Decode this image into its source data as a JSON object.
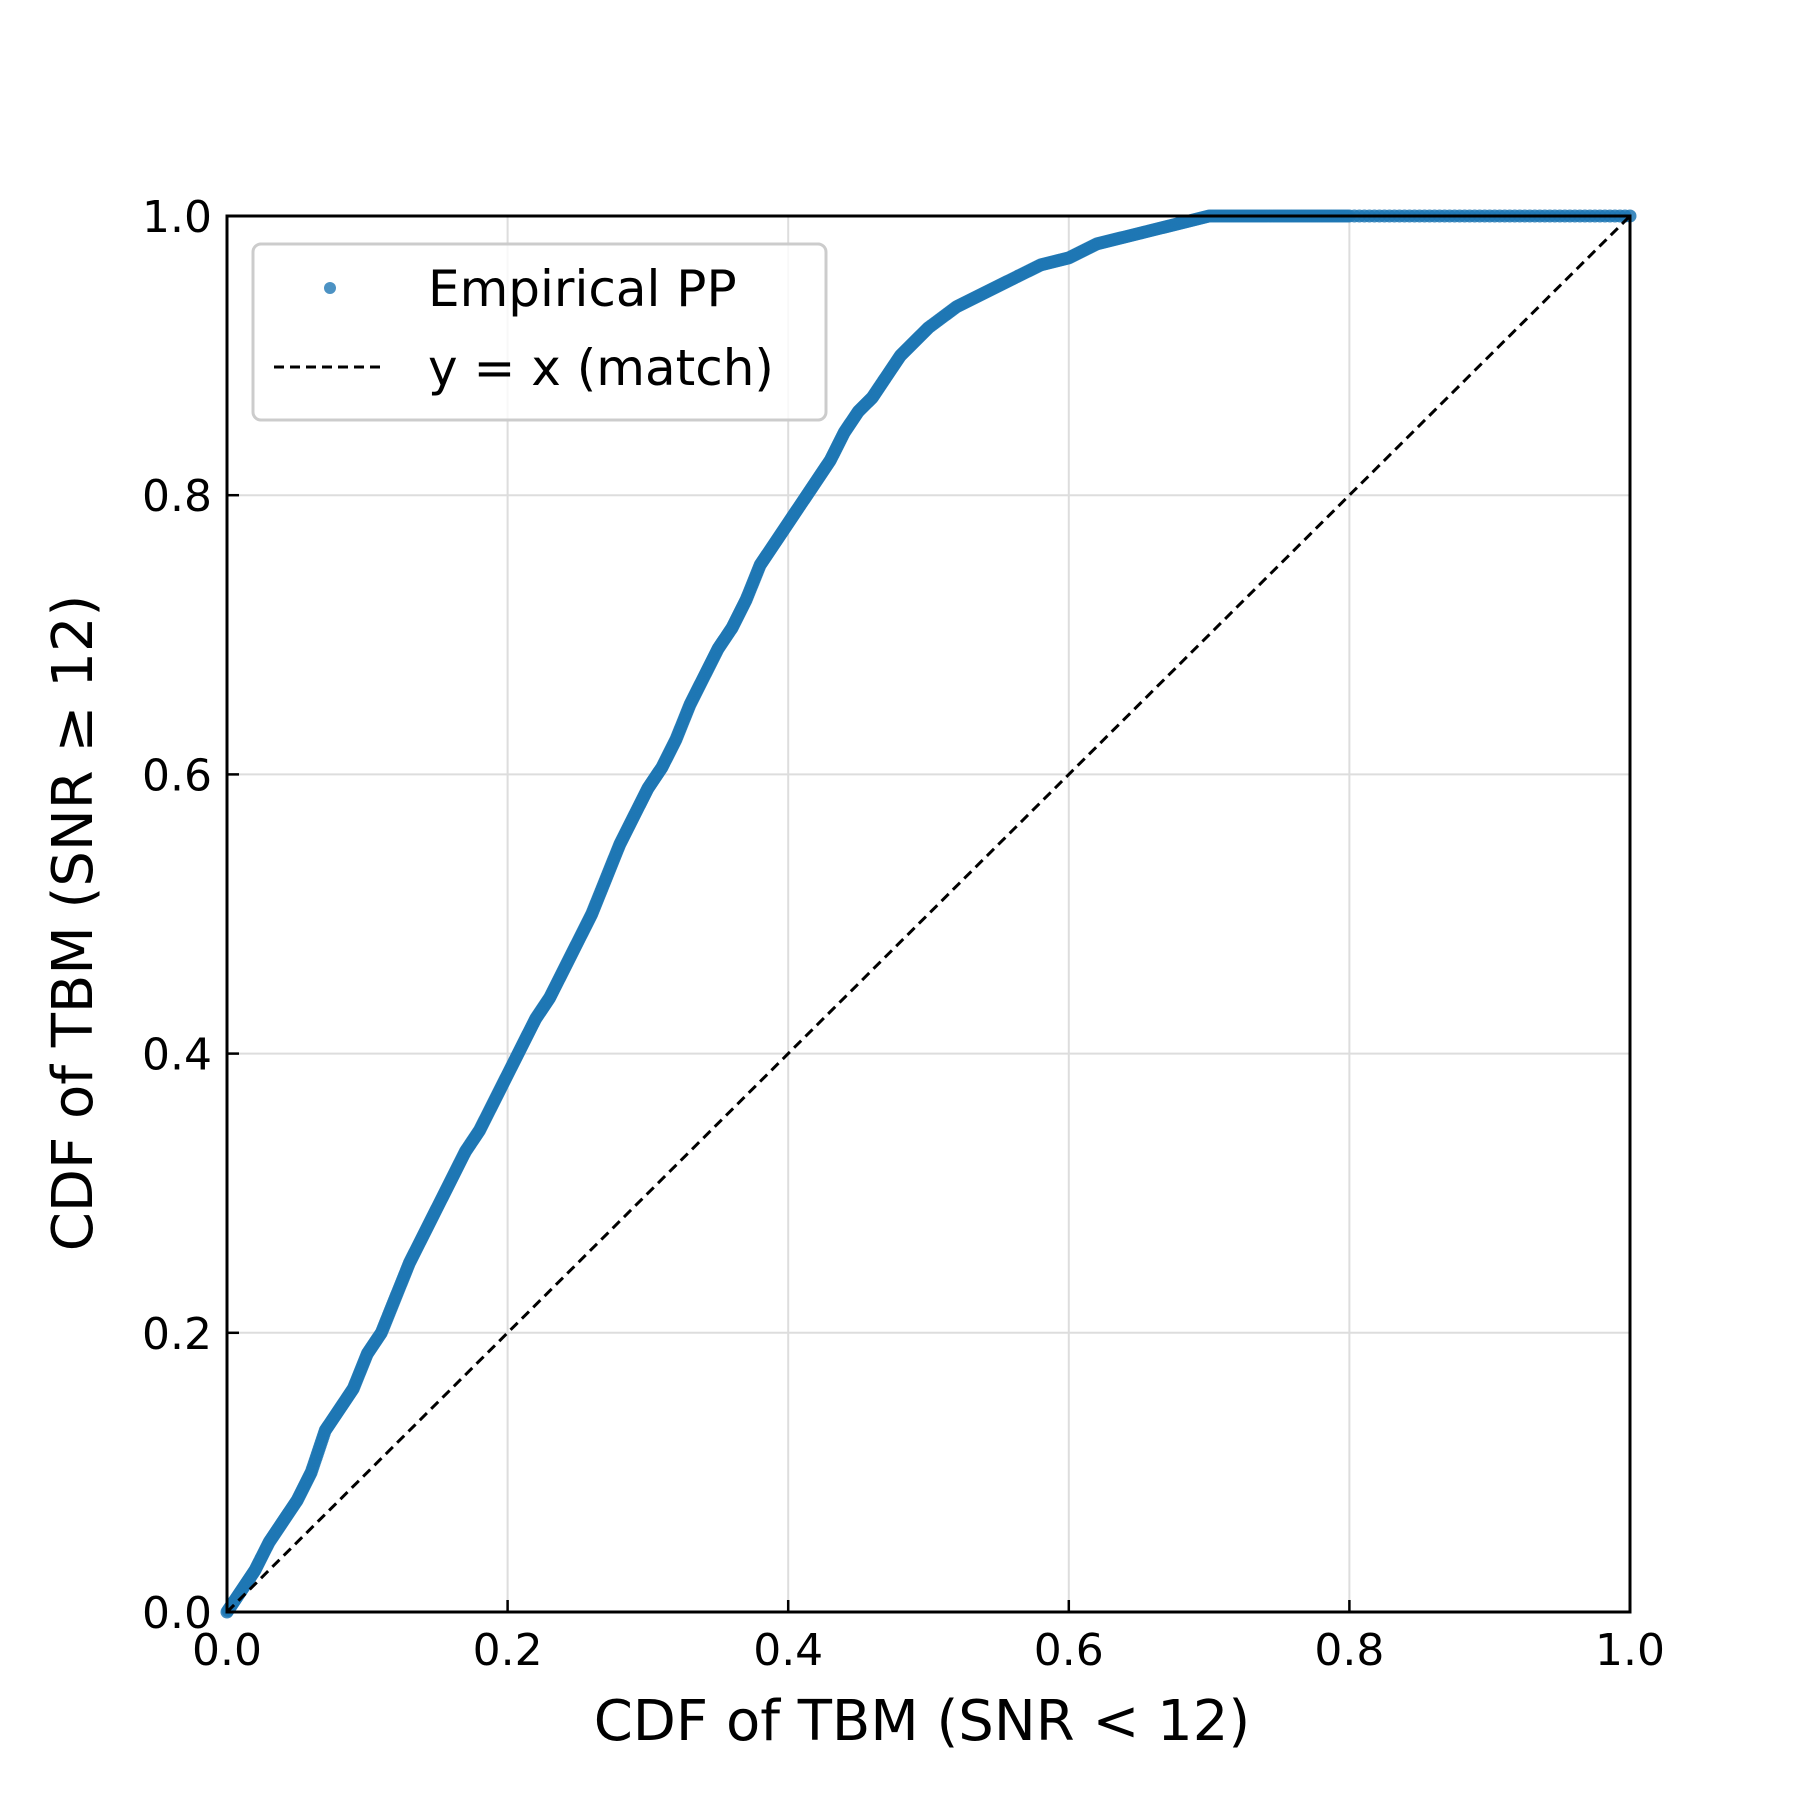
{
  "chart_data": {
    "type": "scatter",
    "xlabel": "CDF of TBM (SNR < 12)",
    "ylabel": "CDF of TBM (SNR ≥ 12)",
    "xlim": [
      0.0,
      1.0
    ],
    "ylim": [
      0.0,
      1.0
    ],
    "x_ticks": [
      "0.0",
      "0.2",
      "0.4",
      "0.6",
      "0.8",
      "1.0"
    ],
    "y_ticks": [
      "0.0",
      "0.2",
      "0.4",
      "0.6",
      "0.8",
      "1.0"
    ],
    "grid": true,
    "legend_position": "upper-left",
    "series": [
      {
        "name": "Empirical PP",
        "kind": "points",
        "color": "#1f77b4",
        "x": [
          0.0,
          0.01,
          0.02,
          0.03,
          0.04,
          0.05,
          0.06,
          0.07,
          0.08,
          0.09,
          0.1,
          0.11,
          0.12,
          0.13,
          0.14,
          0.15,
          0.16,
          0.17,
          0.18,
          0.19,
          0.2,
          0.21,
          0.22,
          0.23,
          0.24,
          0.25,
          0.26,
          0.27,
          0.28,
          0.29,
          0.3,
          0.31,
          0.32,
          0.33,
          0.34,
          0.35,
          0.36,
          0.37,
          0.38,
          0.39,
          0.4,
          0.41,
          0.42,
          0.43,
          0.44,
          0.45,
          0.46,
          0.47,
          0.48,
          0.49,
          0.5,
          0.52,
          0.54,
          0.56,
          0.58,
          0.6,
          0.62,
          0.64,
          0.66,
          0.68,
          0.7,
          0.72,
          0.74,
          0.76,
          0.78,
          0.8,
          0.85,
          0.9,
          0.95,
          1.0
        ],
        "y": [
          0.0,
          0.015,
          0.03,
          0.05,
          0.065,
          0.08,
          0.1,
          0.13,
          0.145,
          0.16,
          0.185,
          0.2,
          0.225,
          0.25,
          0.27,
          0.29,
          0.31,
          0.33,
          0.345,
          0.365,
          0.385,
          0.405,
          0.425,
          0.44,
          0.46,
          0.48,
          0.5,
          0.525,
          0.55,
          0.57,
          0.59,
          0.605,
          0.625,
          0.65,
          0.67,
          0.69,
          0.705,
          0.725,
          0.75,
          0.765,
          0.78,
          0.795,
          0.81,
          0.825,
          0.845,
          0.86,
          0.87,
          0.885,
          0.9,
          0.91,
          0.92,
          0.935,
          0.945,
          0.955,
          0.965,
          0.97,
          0.98,
          0.985,
          0.99,
          0.995,
          1.0,
          1.0,
          1.0,
          1.0,
          1.0,
          1.0,
          1.0,
          1.0,
          1.0,
          1.0
        ]
      },
      {
        "name": "y = x (match)",
        "kind": "dashed-line",
        "color": "#000000",
        "x": [
          0.0,
          1.0
        ],
        "y": [
          0.0,
          1.0
        ]
      }
    ]
  }
}
